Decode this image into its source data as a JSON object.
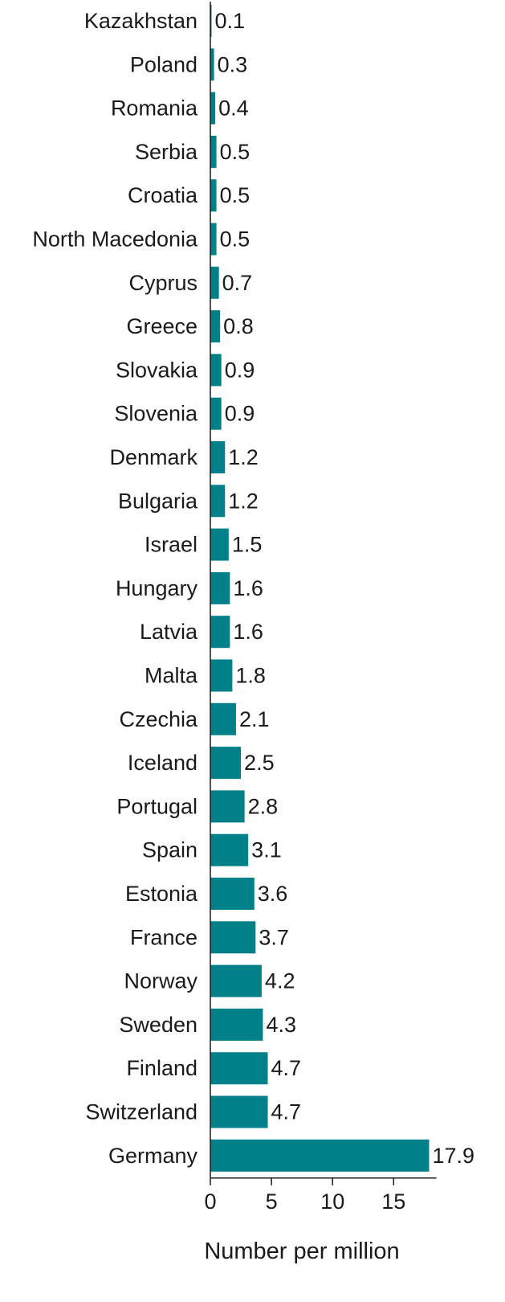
{
  "chart_data": {
    "type": "bar",
    "orientation": "horizontal",
    "categories": [
      "Kazakhstan",
      "Poland",
      "Romania",
      "Serbia",
      "Croatia",
      "North Macedonia",
      "Cyprus",
      "Greece",
      "Slovakia",
      "Slovenia",
      "Denmark",
      "Bulgaria",
      "Israel",
      "Hungary",
      "Latvia",
      "Malta",
      "Czechia",
      "Iceland",
      "Portugal",
      "Spain",
      "Estonia",
      "France",
      "Norway",
      "Sweden",
      "Finland",
      "Switzerland",
      "Germany"
    ],
    "values": [
      0.1,
      0.3,
      0.4,
      0.5,
      0.5,
      0.5,
      0.7,
      0.8,
      0.9,
      0.9,
      1.2,
      1.2,
      1.5,
      1.6,
      1.6,
      1.8,
      2.1,
      2.5,
      2.8,
      3.1,
      3.6,
      3.7,
      4.2,
      4.3,
      4.7,
      4.7,
      17.9
    ],
    "value_labels": [
      "0.1",
      "0.3",
      "0.4",
      "0.5",
      "0.5",
      "0.5",
      "0.7",
      "0.8",
      "0.9",
      "0.9",
      "1.2",
      "1.2",
      "1.5",
      "1.6",
      "1.6",
      "1.8",
      "2.1",
      "2.5",
      "2.8",
      "3.1",
      "3.6",
      "3.7",
      "4.2",
      "4.3",
      "4.7",
      "4.7",
      "17.9"
    ],
    "xlabel": "Number per million",
    "ylabel": "",
    "title": "",
    "xlim": [
      0,
      18.5
    ],
    "xticks": [
      0,
      5,
      10,
      15
    ],
    "xtick_labels": [
      "0",
      "5",
      "10",
      "15"
    ],
    "bar_color": "#00818a",
    "grid": false,
    "legend": "none"
  }
}
